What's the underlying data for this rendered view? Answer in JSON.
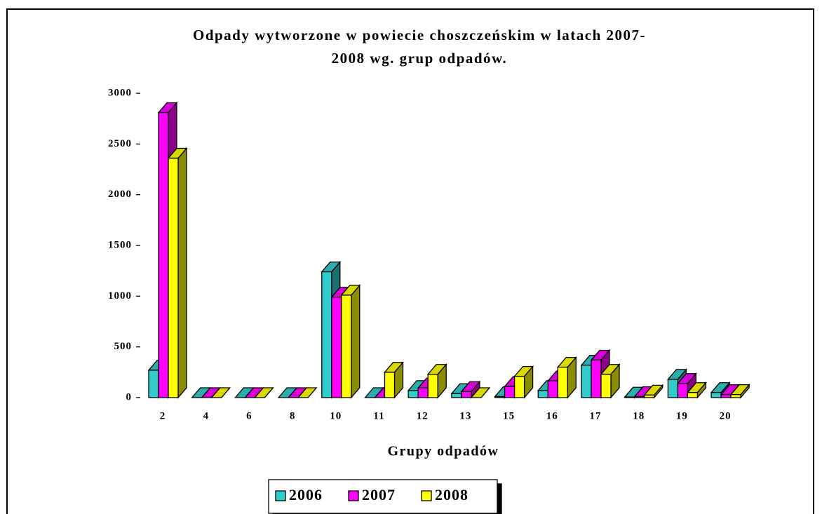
{
  "chart_data": {
    "type": "bar3d",
    "title": [
      "Odpady wytworzone w powiecie choszczeńskim w latach 2007-",
      "2008 wg. grup odpadów."
    ],
    "x_label": "Grupy odpadów",
    "categories": [
      "2",
      "4",
      "6",
      "8",
      "10",
      "11",
      "12",
      "13",
      "15",
      "16",
      "17",
      "18",
      "19",
      "20"
    ],
    "series": [
      {
        "name": "2006",
        "color": "#33cccc",
        "values": [
          270,
          0,
          0,
          0,
          1240,
          0,
          70,
          40,
          10,
          70,
          320,
          5,
          180,
          50
        ]
      },
      {
        "name": "2007",
        "color": "#ff00ff",
        "values": [
          2810,
          0,
          0,
          0,
          990,
          0,
          95,
          60,
          110,
          165,
          370,
          10,
          140,
          30
        ]
      },
      {
        "name": "2008",
        "color": "#ffff00",
        "values": [
          2360,
          0,
          0,
          0,
          1010,
          250,
          230,
          0,
          210,
          300,
          230,
          25,
          50,
          30
        ]
      }
    ],
    "ylim": [
      0,
      3000
    ],
    "yticks": [
      0,
      500,
      1000,
      1500,
      2000,
      2500,
      3000
    ],
    "legend": "bottom"
  }
}
